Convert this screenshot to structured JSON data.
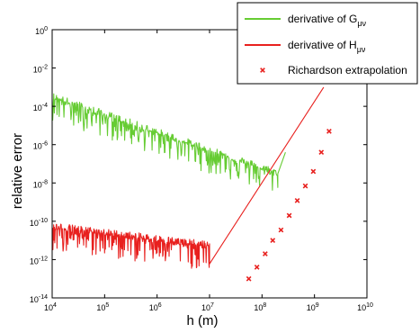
{
  "chart_data": {
    "type": "line",
    "xlabel": "h (m)",
    "ylabel": "relative error",
    "xscale": "log",
    "yscale": "log",
    "xlim": [
      10000,
      10000000000
    ],
    "ylim": [
      1e-14,
      1
    ],
    "x_ticks": [
      {
        "base": "10",
        "exp": "4"
      },
      {
        "base": "10",
        "exp": "5"
      },
      {
        "base": "10",
        "exp": "6"
      },
      {
        "base": "10",
        "exp": "7"
      },
      {
        "base": "10",
        "exp": "8"
      },
      {
        "base": "10",
        "exp": "9"
      },
      {
        "base": "10",
        "exp": "10"
      }
    ],
    "y_ticks": [
      {
        "base": "10",
        "exp": "0"
      },
      {
        "base": "10",
        "exp": "-2"
      },
      {
        "base": "10",
        "exp": "-4"
      },
      {
        "base": "10",
        "exp": "-6"
      },
      {
        "base": "10",
        "exp": "-8"
      },
      {
        "base": "10",
        "exp": "-10"
      },
      {
        "base": "10",
        "exp": "-12"
      },
      {
        "base": "10",
        "exp": "-14"
      }
    ],
    "legend_position": "top-right",
    "series": [
      {
        "name": "derivative of G",
        "subscript": "μν",
        "color": "#66cc33",
        "style": "noisy-line",
        "trend": {
          "x": [
            10000,
            200000000
          ],
          "y": [
            0.0003,
            3e-08
          ]
        },
        "fluctuation_decades": 1.2,
        "rise": {
          "x": [
            200000000,
            280000000
          ],
          "y": [
            3e-08,
            4e-07
          ]
        }
      },
      {
        "name": "derivative of H",
        "subscript": "μν",
        "color": "#e8201e",
        "style": "noisy-line",
        "trend": {
          "x": [
            10000,
            10000000
          ],
          "y": [
            5e-11,
            5e-12
          ]
        },
        "fluctuation_decades": 1.3,
        "rise": {
          "x": [
            10000000,
            1500000000
          ],
          "y": [
            6e-13,
            0.001
          ]
        }
      },
      {
        "name": "Richardson extrapolation",
        "color": "#e8201e",
        "style": "markers",
        "marker": "x",
        "x": [
          56000000,
          80000000,
          115000000,
          160000000,
          230000000,
          330000000,
          470000000,
          670000000,
          950000000,
          1350000000,
          1900000000
        ],
        "y": [
          1e-13,
          4e-13,
          2e-12,
          1e-11,
          3.5e-11,
          2e-10,
          1.2e-09,
          7e-09,
          4e-08,
          4e-07,
          5e-06
        ]
      }
    ]
  }
}
